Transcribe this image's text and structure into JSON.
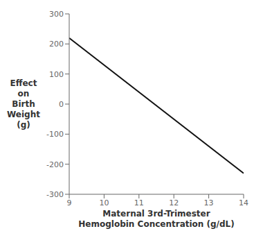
{
  "chart_data": {
    "type": "line",
    "x": [
      9,
      14
    ],
    "values": [
      220,
      -230
    ],
    "color": "#111111",
    "xlabel": "Maternal 3rd-Trimester\nHemoglobin Concentration (g/dL)",
    "ylabel": "Effect\non\nBirth\nWeight\n(g)",
    "xlim": [
      9,
      14
    ],
    "ylim": [
      -300,
      300
    ],
    "xticks": [
      9,
      10,
      11,
      12,
      13,
      14
    ],
    "yticks": [
      -300,
      -200,
      -100,
      0,
      100,
      200,
      300
    ],
    "grid": false
  }
}
